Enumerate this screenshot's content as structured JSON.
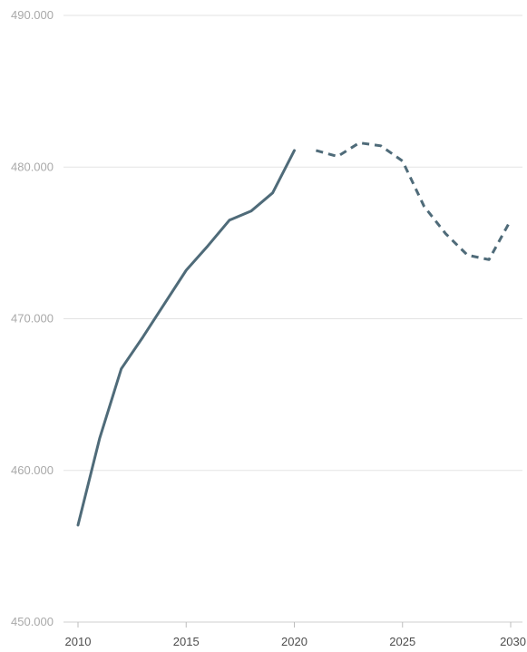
{
  "chart_data": {
    "type": "line",
    "title": "",
    "xlabel": "",
    "ylabel": "",
    "xlim": [
      2010,
      2030
    ],
    "ylim": [
      450000,
      490000
    ],
    "y_ticks": [
      {
        "value": 490000,
        "label": "490.000"
      },
      {
        "value": 480000,
        "label": "480.000"
      },
      {
        "value": 470000,
        "label": "470.000"
      },
      {
        "value": 460000,
        "label": "460.000"
      },
      {
        "value": 450000,
        "label": "450.000"
      }
    ],
    "x_ticks": [
      {
        "value": 2010,
        "label": "2010"
      },
      {
        "value": 2015,
        "label": "2015"
      },
      {
        "value": 2020,
        "label": "2020"
      },
      {
        "value": 2025,
        "label": "2025"
      },
      {
        "value": 2030,
        "label": "2030"
      }
    ],
    "grid": true,
    "series": [
      {
        "style": "solid",
        "color": "#4f6b79",
        "x": [
          2010,
          2011,
          2012,
          2013,
          2014,
          2015,
          2016,
          2017,
          2018,
          2019,
          2020
        ],
        "y": [
          456400,
          462100,
          466700,
          468800,
          471000,
          473200,
          474800,
          476500,
          477100,
          478300,
          481100
        ]
      },
      {
        "style": "dashed",
        "color": "#4f6b79",
        "x": [
          2021,
          2022,
          2023,
          2024,
          2025,
          2026,
          2027,
          2028,
          2029,
          2030
        ],
        "y": [
          481100,
          480700,
          481600,
          481400,
          480400,
          477400,
          475600,
          474200,
          473900,
          476500
        ]
      }
    ]
  }
}
